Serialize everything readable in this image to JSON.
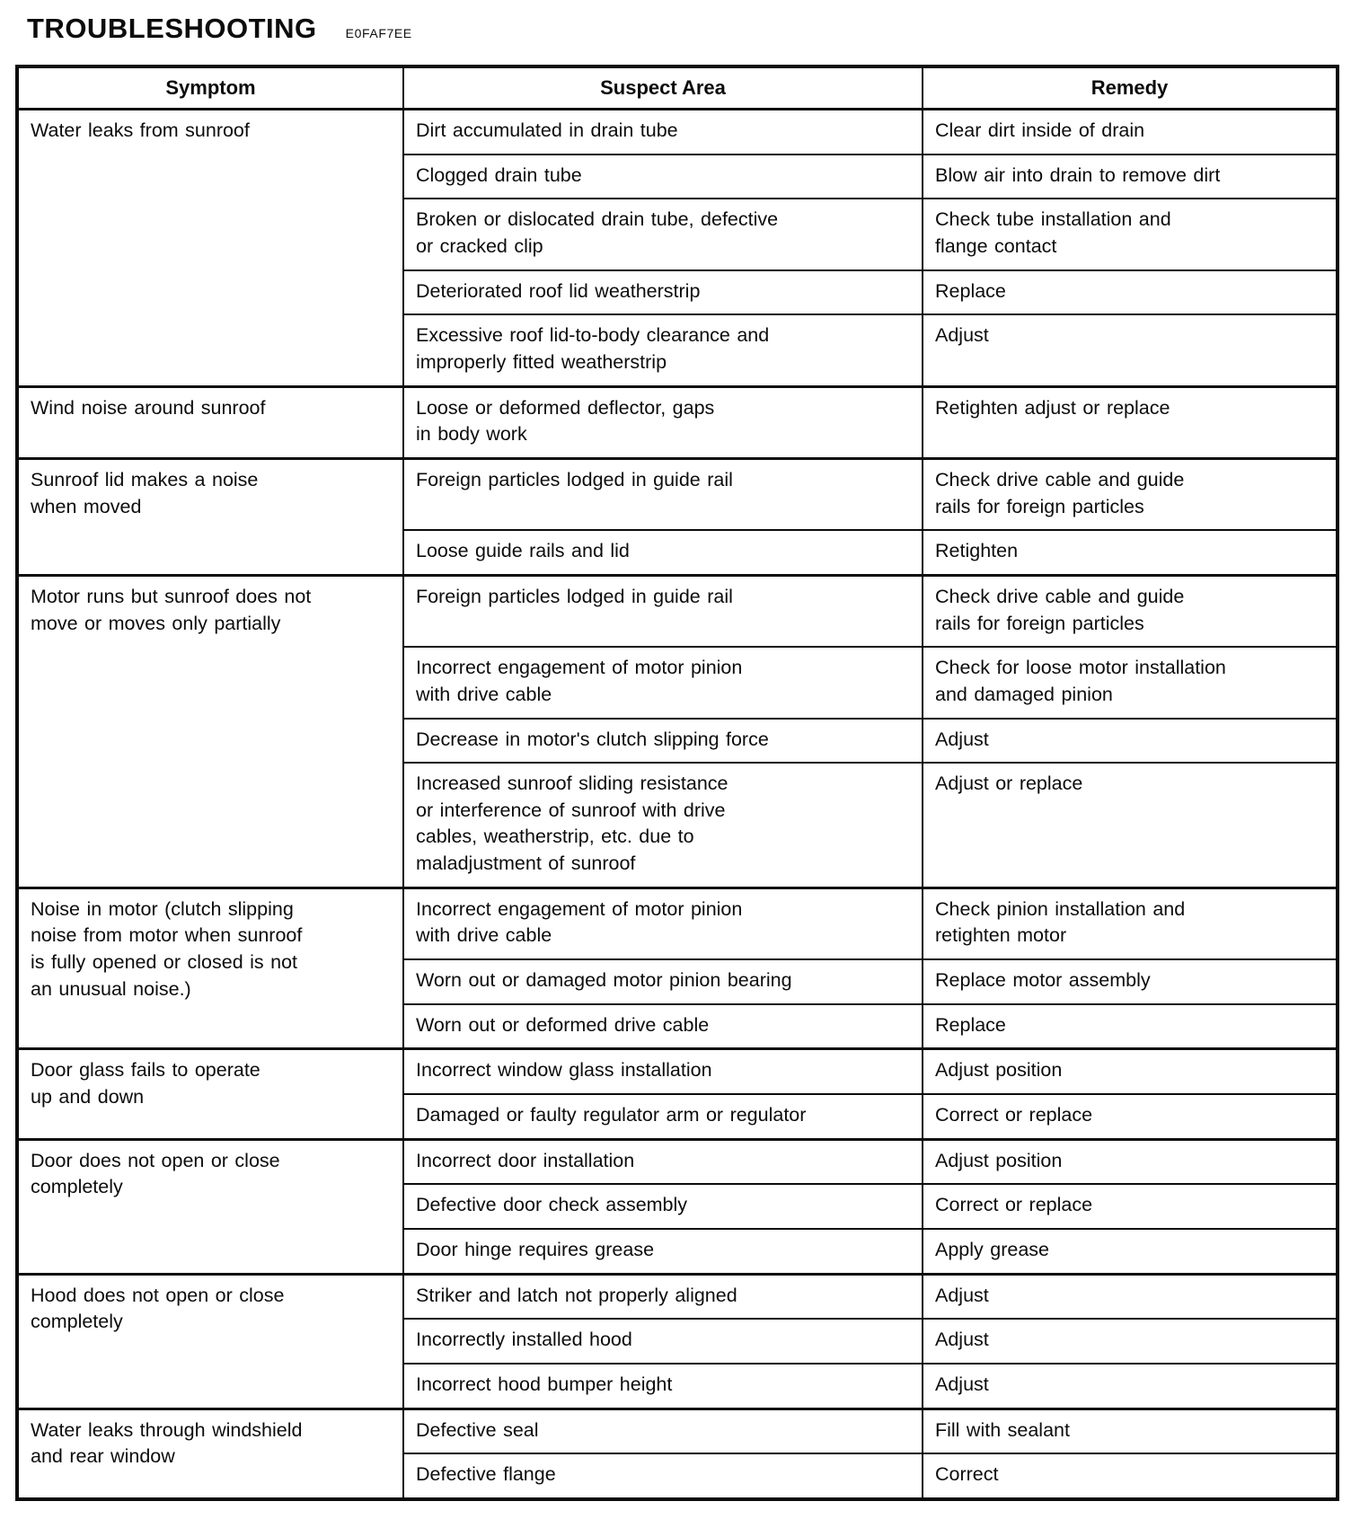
{
  "page": {
    "title": "TROUBLESHOOTING",
    "code": "E0FAF7EE"
  },
  "table": {
    "headers": [
      "Symptom",
      "Suspect Area",
      "Remedy"
    ],
    "groups": [
      {
        "symptom": "Water leaks from sunroof",
        "rows": [
          {
            "suspect": "Dirt accumulated in drain tube",
            "remedy": "Clear dirt inside of drain"
          },
          {
            "suspect": "Clogged drain tube",
            "remedy": "Blow air into drain to remove dirt"
          },
          {
            "suspect": "Broken or dislocated drain tube, defective\nor cracked clip",
            "remedy": "Check tube installation and\nflange contact"
          },
          {
            "suspect": "Deteriorated roof lid weatherstrip",
            "remedy": "Replace"
          },
          {
            "suspect": "Excessive roof lid-to-body clearance and\nimproperly fitted weatherstrip",
            "remedy": "Adjust"
          }
        ]
      },
      {
        "symptom": "Wind noise around sunroof",
        "rows": [
          {
            "suspect": "Loose or deformed deflector, gaps\nin body work",
            "remedy": "Retighten adjust or replace"
          }
        ]
      },
      {
        "symptom": "Sunroof lid makes a noise\nwhen moved",
        "rows": [
          {
            "suspect": "Foreign particles lodged in guide rail",
            "remedy": "Check drive cable and guide\nrails for foreign particles"
          },
          {
            "suspect": "Loose guide rails and lid",
            "remedy": "Retighten"
          }
        ]
      },
      {
        "symptom": "Motor runs but sunroof does not\nmove or moves only partially",
        "rows": [
          {
            "suspect": "Foreign particles lodged in guide rail",
            "remedy": "Check drive cable and guide\nrails for foreign particles"
          },
          {
            "suspect": "Incorrect engagement of motor pinion\nwith drive cable",
            "remedy": "Check for loose motor installation\nand damaged pinion"
          },
          {
            "suspect": "Decrease in motor's clutch slipping force",
            "remedy": "Adjust"
          },
          {
            "suspect": "Increased sunroof sliding resistance\nor interference of sunroof with drive\ncables, weatherstrip, etc.  due to\nmaladjustment of sunroof",
            "remedy": "Adjust or replace"
          }
        ]
      },
      {
        "symptom": "Noise in motor (clutch slipping\nnoise from motor when sunroof\nis fully opened or closed is not\nan unusual noise.)",
        "rows": [
          {
            "suspect": "Incorrect engagement of motor pinion\nwith drive cable",
            "remedy": "Check pinion installation and\nretighten motor"
          },
          {
            "suspect": "Worn out or damaged motor pinion bearing",
            "remedy": "Replace motor assembly"
          },
          {
            "suspect": "Worn out or deformed drive cable",
            "remedy": "Replace"
          }
        ]
      },
      {
        "symptom": "Door glass fails to operate\nup and down",
        "rows": [
          {
            "suspect": "Incorrect window glass installation",
            "remedy": "Adjust position"
          },
          {
            "suspect": "Damaged or faulty regulator arm or regulator",
            "remedy": "Correct or replace"
          }
        ]
      },
      {
        "symptom": "Door does not open or close\ncompletely",
        "rows": [
          {
            "suspect": "Incorrect door installation",
            "remedy": "Adjust position"
          },
          {
            "suspect": "Defective door check assembly",
            "remedy": "Correct or replace"
          },
          {
            "suspect": "Door hinge requires grease",
            "remedy": "Apply grease"
          }
        ]
      },
      {
        "symptom": "Hood does not open or close\ncompletely",
        "rows": [
          {
            "suspect": "Striker and latch not properly aligned",
            "remedy": "Adjust"
          },
          {
            "suspect": "Incorrectly installed hood",
            "remedy": "Adjust"
          },
          {
            "suspect": "Incorrect hood bumper height",
            "remedy": "Adjust"
          }
        ]
      },
      {
        "symptom": "Water leaks through windshield\nand rear window",
        "rows": [
          {
            "suspect": "Defective seal",
            "remedy": "Fill with sealant"
          },
          {
            "suspect": "Defective flange",
            "remedy": "Correct"
          }
        ]
      }
    ]
  }
}
